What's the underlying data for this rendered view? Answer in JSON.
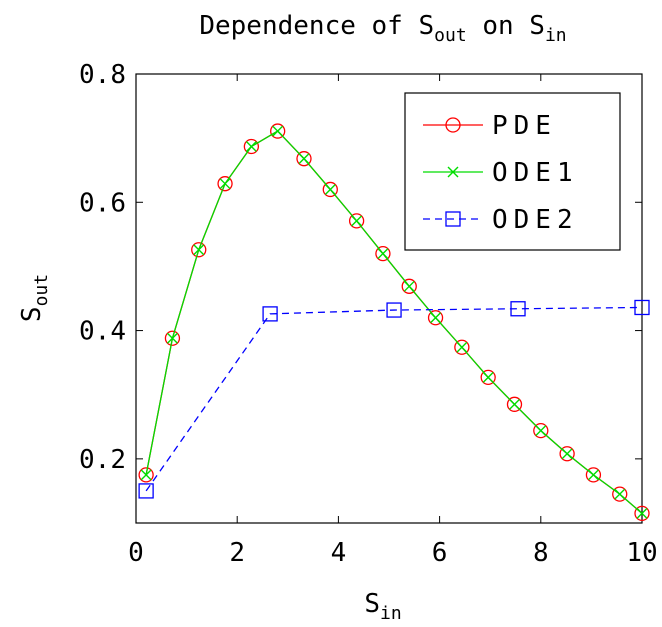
{
  "chart_data": {
    "type": "line",
    "title": {
      "main": "Dependence of S",
      "sub1": "out",
      "mid": " on S",
      "sub2": "in"
    },
    "xlabel": {
      "main": "S",
      "sub": "in"
    },
    "ylabel": {
      "main": "S",
      "sub": "out"
    },
    "xlim": [
      0,
      10
    ],
    "ylim": [
      0.1,
      0.8
    ],
    "xticks": [
      0,
      2,
      4,
      6,
      8,
      10
    ],
    "yticks": [
      0.2,
      0.4,
      0.6,
      0.8
    ],
    "xtick_labels": [
      "0",
      "2",
      "4",
      "6",
      "8",
      "10"
    ],
    "ytick_labels": [
      "0.2",
      "0.4",
      "0.6",
      "0.8"
    ],
    "legend_position": "top-right",
    "series": [
      {
        "name": "PDE",
        "color": "#ff0000",
        "line_style": "solid",
        "marker": "circle",
        "x": [
          0.2,
          0.72,
          1.24,
          1.76,
          2.28,
          2.8,
          3.32,
          3.84,
          4.36,
          4.88,
          5.4,
          5.92,
          6.44,
          6.96,
          7.48,
          8.0,
          8.52,
          9.04,
          9.56,
          10.0
        ],
        "y": [
          0.175,
          0.388,
          0.526,
          0.629,
          0.687,
          0.711,
          0.668,
          0.62,
          0.571,
          0.52,
          0.469,
          0.42,
          0.374,
          0.327,
          0.285,
          0.244,
          0.208,
          0.175,
          0.145,
          0.115
        ]
      },
      {
        "name": "ODE1",
        "color": "#00dd00",
        "line_style": "solid",
        "marker": "x",
        "x": [
          0.2,
          0.72,
          1.24,
          1.76,
          2.28,
          2.8,
          3.32,
          3.84,
          4.36,
          4.88,
          5.4,
          5.92,
          6.44,
          6.96,
          7.48,
          8.0,
          8.52,
          9.04,
          9.56,
          10.0
        ],
        "y": [
          0.175,
          0.388,
          0.526,
          0.629,
          0.687,
          0.711,
          0.668,
          0.62,
          0.571,
          0.52,
          0.469,
          0.42,
          0.374,
          0.327,
          0.285,
          0.244,
          0.208,
          0.175,
          0.145,
          0.115
        ]
      },
      {
        "name": "ODE2",
        "color": "#0000ff",
        "line_style": "dashed",
        "marker": "square",
        "x": [
          0.2,
          2.65,
          5.1,
          7.55,
          10.0
        ],
        "y": [
          0.15,
          0.426,
          0.432,
          0.434,
          0.436
        ]
      }
    ]
  }
}
